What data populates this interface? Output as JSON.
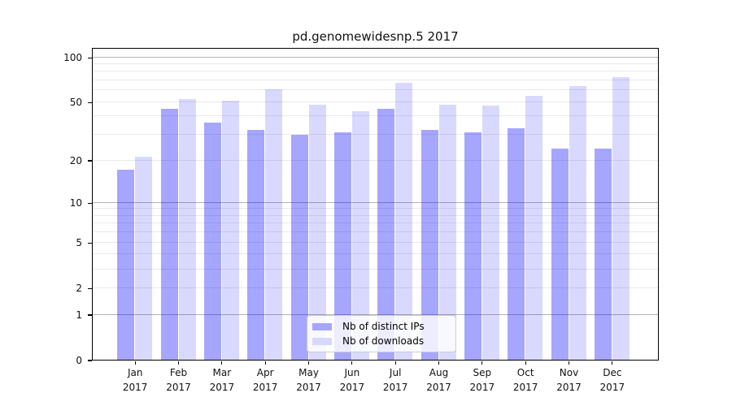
{
  "chart_data": {
    "type": "bar",
    "title": "pd.genomewidesnp.5 2017",
    "categories": [
      "Jan 2017",
      "Feb 2017",
      "Mar 2017",
      "Apr 2017",
      "May 2017",
      "Jun 2017",
      "Jul 2017",
      "Aug 2017",
      "Sep 2017",
      "Oct 2017",
      "Nov 2017",
      "Dec 2017"
    ],
    "series": [
      {
        "name": "Nb of distinct IPs",
        "color": "#a6a6ff",
        "fill": "rgba(0,0,255,0.35)",
        "values": [
          17,
          45,
          36,
          32,
          30,
          31,
          45,
          32,
          31,
          33,
          24,
          24
        ]
      },
      {
        "name": "Nb of downloads",
        "color": "#d8d8ff",
        "fill": "rgba(0,0,255,0.15)",
        "values": [
          21,
          52,
          51,
          61,
          48,
          43,
          67,
          48,
          47,
          55,
          64,
          73
        ]
      }
    ],
    "xlabel": "",
    "ylabel": "",
    "yscale": "log1p",
    "ylim": [
      0,
      116
    ],
    "yticks": [
      0,
      1,
      2,
      5,
      10,
      20,
      50,
      100
    ],
    "major_gridlines": [
      1,
      10,
      100
    ],
    "minor_gridlines": [
      2,
      3,
      4,
      5,
      6,
      7,
      8,
      9,
      20,
      30,
      40,
      50,
      60,
      70,
      80,
      90
    ],
    "grid": true,
    "legend_position": "lower-center"
  },
  "legend": {
    "items": [
      {
        "label": "Nb of distinct IPs",
        "color": "#a6a6ff"
      },
      {
        "label": "Nb of downloads",
        "color": "#d8d8ff"
      }
    ]
  },
  "colors": {
    "background": "#ffffff",
    "spine": "#000000",
    "major_grid": "#b3b3b3",
    "minor_grid": "#e9e9e9",
    "legend_border": "#cccccc"
  }
}
